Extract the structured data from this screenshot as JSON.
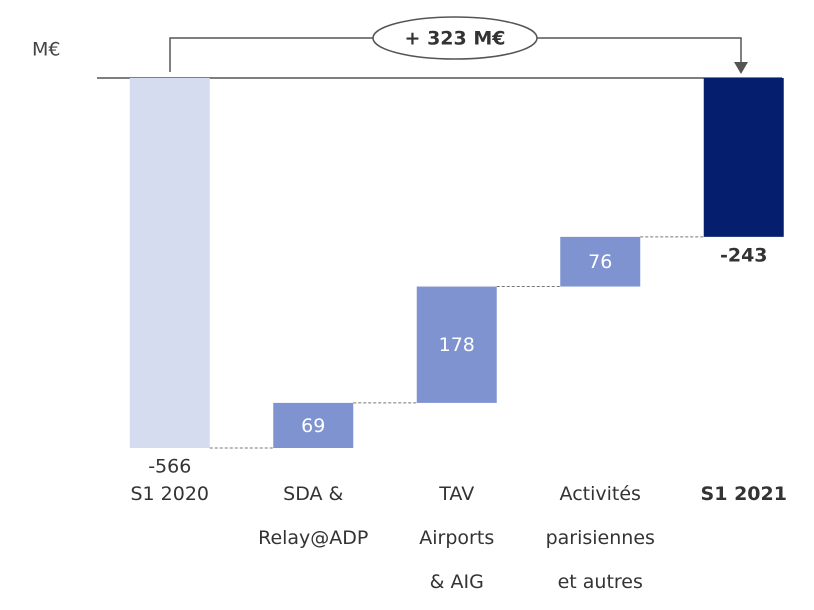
{
  "chart_data": {
    "type": "waterfall",
    "unit_label": "M€",
    "categories": [
      "S1 2020",
      "SDA &\nRelay@ADP",
      "TAV\nAirports\n& AIG",
      "Activités\nparisiennes\net autres",
      "S1 2021"
    ],
    "values": [
      -566,
      69,
      178,
      76,
      -243
    ],
    "colors": [
      "#d5dcf0",
      "#7f93d1",
      "#7f93d1",
      "#7f93d1",
      "#061e6e"
    ],
    "annotation": "+ 323 M€"
  }
}
